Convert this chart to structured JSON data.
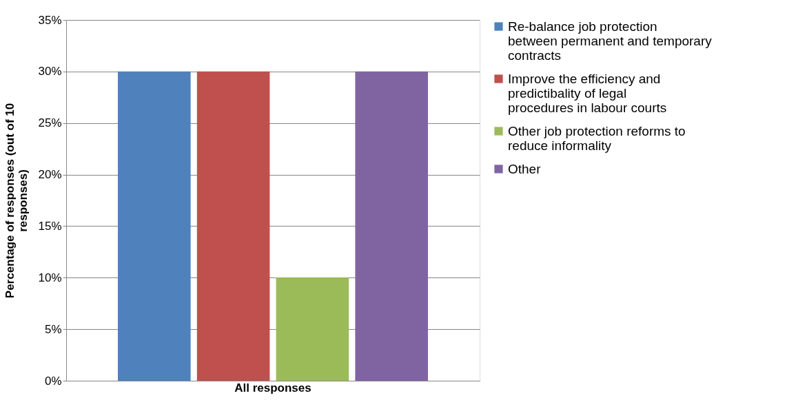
{
  "chart_data": {
    "type": "bar",
    "ylabel": "Percentage of responses (out of 10 responses)",
    "categories": [
      "All responses"
    ],
    "series": [
      {
        "name": "Re-balance job protection between permanent and temporary contracts",
        "color": "#4f81bd",
        "values": [
          30
        ]
      },
      {
        "name": "Improve the efficiency and predictibality of legal procedures in labour courts",
        "color": "#c0504d",
        "values": [
          30
        ]
      },
      {
        "name": "Other job protection reforms to reduce informality",
        "color": "#9bbb59",
        "values": [
          10
        ]
      },
      {
        "name": "Other",
        "color": "#8064a2",
        "values": [
          30
        ]
      }
    ],
    "ylim": [
      0,
      35
    ],
    "yticks": [
      {
        "value": 0,
        "label": "0%"
      },
      {
        "value": 5,
        "label": "5%"
      },
      {
        "value": 10,
        "label": "10%"
      },
      {
        "value": 15,
        "label": "15%"
      },
      {
        "value": 20,
        "label": "20%"
      },
      {
        "value": 25,
        "label": "25%"
      },
      {
        "value": 30,
        "label": "30%"
      },
      {
        "value": 35,
        "label": "35%"
      }
    ],
    "grid": "y",
    "legend": "right"
  }
}
